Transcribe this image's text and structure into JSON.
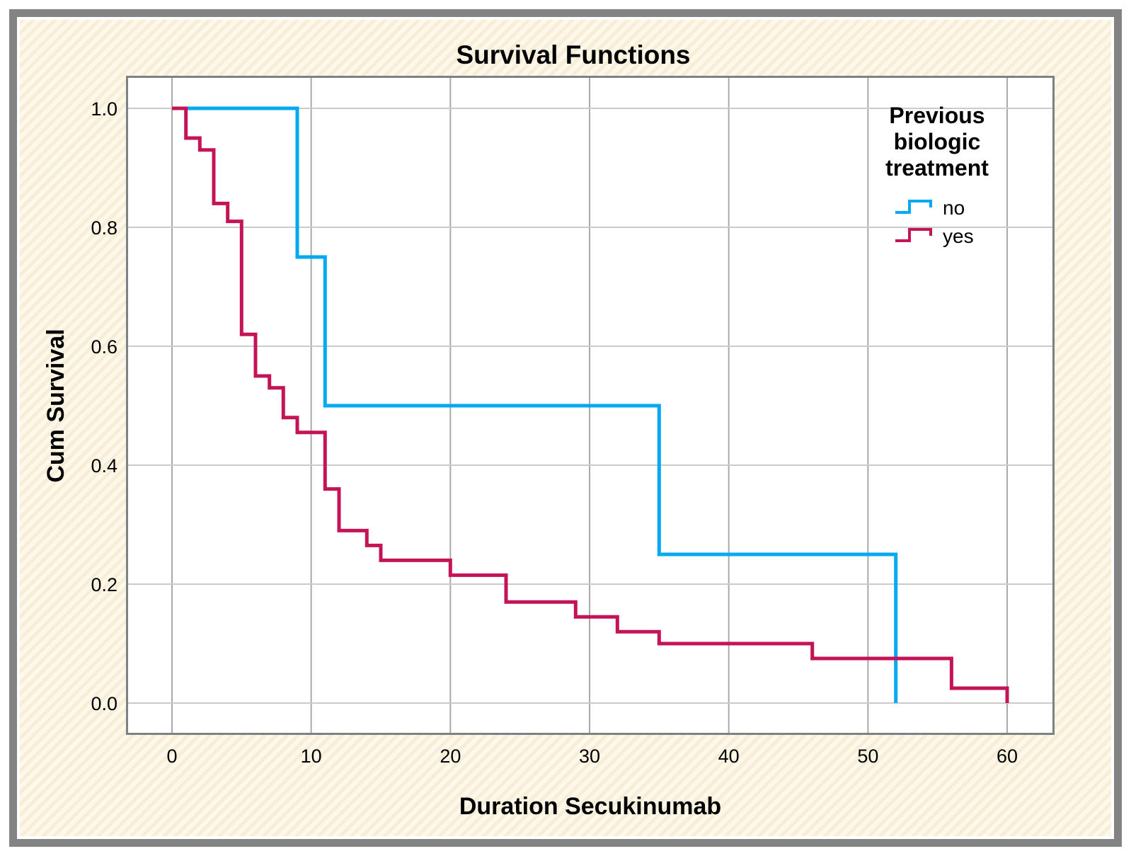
{
  "chart_data": {
    "type": "line",
    "subtype": "kaplan_meier_step",
    "title": "Survival Functions",
    "xlabel": "Duration Secukinumab",
    "ylabel": "Cum Survival",
    "xlim": [
      -3.3,
      63.4
    ],
    "ylim": [
      -0.07,
      1.05
    ],
    "xticks": [
      0,
      10,
      20,
      30,
      40,
      50,
      60
    ],
    "yticks": [
      {
        "value": 0.0,
        "label": "0.0"
      },
      {
        "value": 0.2,
        "label": "0.2"
      },
      {
        "value": 0.4,
        "label": "0.4"
      },
      {
        "value": 0.6,
        "label": "0.6"
      },
      {
        "value": 0.8,
        "label": "0.8"
      },
      {
        "value": 1.0,
        "label": "1.0"
      }
    ],
    "grid": true,
    "legend_position": "top-right-inside",
    "series": [
      {
        "name": "no",
        "color": "#00a9f2",
        "points": [
          [
            0,
            1.0
          ],
          [
            9,
            1.0
          ],
          [
            9,
            0.75
          ],
          [
            11,
            0.75
          ],
          [
            11,
            0.5
          ],
          [
            35,
            0.5
          ],
          [
            35,
            0.25
          ],
          [
            52,
            0.25
          ],
          [
            52,
            0.0
          ]
        ]
      },
      {
        "name": "yes",
        "color": "#c41457",
        "points": [
          [
            0,
            1.0
          ],
          [
            1,
            1.0
          ],
          [
            1,
            0.95
          ],
          [
            2,
            0.95
          ],
          [
            2,
            0.93
          ],
          [
            3,
            0.93
          ],
          [
            3,
            0.84
          ],
          [
            4,
            0.84
          ],
          [
            4,
            0.81
          ],
          [
            5,
            0.81
          ],
          [
            5,
            0.62
          ],
          [
            6,
            0.62
          ],
          [
            6,
            0.55
          ],
          [
            7,
            0.55
          ],
          [
            7,
            0.53
          ],
          [
            8,
            0.53
          ],
          [
            8,
            0.48
          ],
          [
            9,
            0.48
          ],
          [
            9,
            0.455
          ],
          [
            11,
            0.455
          ],
          [
            11,
            0.36
          ],
          [
            12,
            0.36
          ],
          [
            12,
            0.29
          ],
          [
            14,
            0.29
          ],
          [
            14,
            0.265
          ],
          [
            15,
            0.265
          ],
          [
            15,
            0.24
          ],
          [
            20,
            0.24
          ],
          [
            20,
            0.215
          ],
          [
            24,
            0.215
          ],
          [
            24,
            0.17
          ],
          [
            29,
            0.17
          ],
          [
            29,
            0.145
          ],
          [
            32,
            0.145
          ],
          [
            32,
            0.12
          ],
          [
            35,
            0.12
          ],
          [
            35,
            0.1
          ],
          [
            46,
            0.1
          ],
          [
            46,
            0.075
          ],
          [
            56,
            0.075
          ],
          [
            56,
            0.025
          ],
          [
            60,
            0.025
          ],
          [
            60,
            0.0
          ]
        ]
      }
    ]
  },
  "legend": {
    "title_lines": [
      "Previous",
      "biologic",
      "treatment"
    ],
    "items": [
      {
        "label": "no",
        "color": "#00a9f2"
      },
      {
        "label": "yes",
        "color": "#c41457"
      }
    ]
  }
}
